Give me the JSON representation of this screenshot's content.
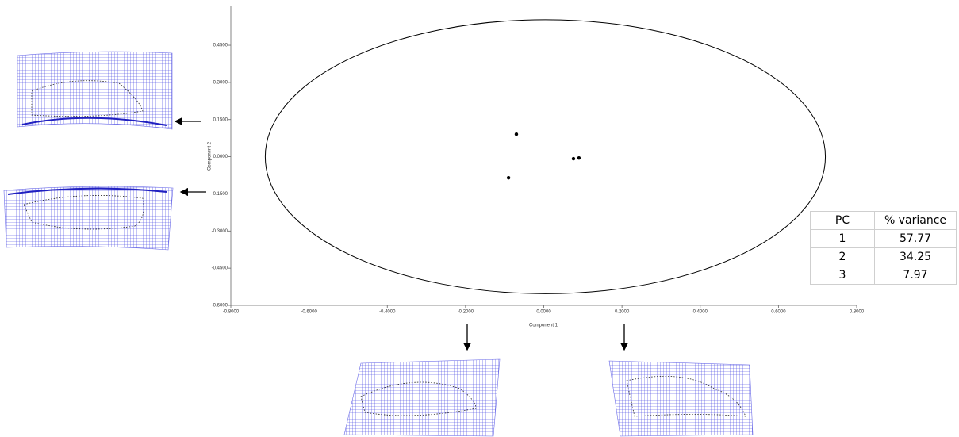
{
  "chart_data": {
    "type": "scatter",
    "x_label": "Component 1",
    "y_label": "Component 2",
    "x": [
      -0.07,
      -0.09,
      0.076,
      0.09
    ],
    "values": [
      0.091,
      -0.085,
      -0.008,
      -0.005
    ],
    "color": "#000000",
    "ellipse": {
      "cx": 0.004,
      "cy": 0.0,
      "rx": 0.716,
      "ry": 0.553
    },
    "xlim": [
      -0.8,
      0.8
    ],
    "ylim": [
      -0.6,
      0.607
    ],
    "xticks": [
      {
        "value": -0.8,
        "label": "-0.8000"
      },
      {
        "value": -0.6,
        "label": "-0.6000"
      },
      {
        "value": -0.4,
        "label": "-0.4000"
      },
      {
        "value": -0.2,
        "label": "-0.2000"
      },
      {
        "value": 0,
        "label": "0.0000"
      },
      {
        "value": 0.2,
        "label": "0.2000"
      },
      {
        "value": 0.4,
        "label": "0.4000"
      },
      {
        "value": 0.6,
        "label": "0.6000"
      },
      {
        "value": 0.8,
        "label": "0.8000"
      }
    ],
    "yticks": [
      {
        "value": -0.6,
        "label": "-0.6000"
      },
      {
        "value": -0.45,
        "label": "-0.4500"
      },
      {
        "value": -0.3,
        "label": "-0.3000"
      },
      {
        "value": -0.15,
        "label": "-0.1500"
      },
      {
        "value": 0,
        "label": "0.0000"
      },
      {
        "value": 0.15,
        "label": "0.1500"
      },
      {
        "value": 0.3,
        "label": "0.3000"
      },
      {
        "value": 0.45,
        "label": "0.4500"
      }
    ]
  },
  "table": {
    "header": [
      "PC",
      "% variance"
    ],
    "rows": [
      [
        1,
        57.77
      ],
      [
        2,
        34.25
      ],
      [
        3,
        7.97
      ]
    ]
  }
}
